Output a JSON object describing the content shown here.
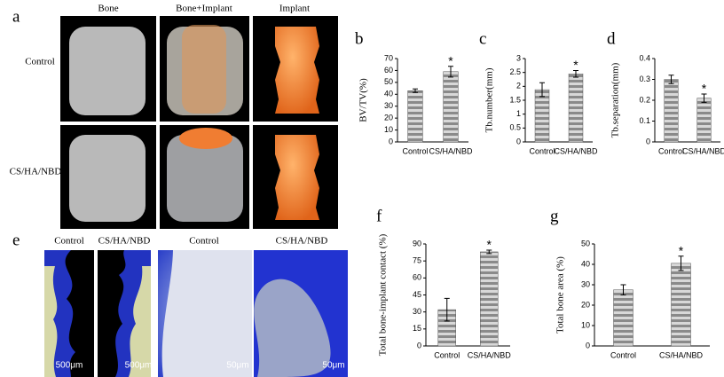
{
  "panel_a": {
    "label": "a",
    "columns": [
      "Bone",
      "Bone+Implant",
      "Implant"
    ],
    "rows": [
      "Control",
      "CS/HA/NBD"
    ]
  },
  "panel_e": {
    "label": "e",
    "labels": [
      "Control",
      "CS/HA/NBD",
      "Control",
      "CS/HA/NBD"
    ],
    "scale_bars": [
      "500μm",
      "500μm",
      "50μm",
      "50μm"
    ]
  },
  "chart_data": [
    {
      "type": "bar",
      "label": "b",
      "ylabel": "BV/TV(%)",
      "categories": [
        "Control",
        "CS/HA/NBD"
      ],
      "values": [
        43,
        59
      ],
      "errors": [
        1.5,
        4.5
      ],
      "annotation": "*",
      "ylim": [
        0,
        70
      ],
      "yticks": [
        0,
        10,
        20,
        30,
        40,
        50,
        60,
        70
      ]
    },
    {
      "type": "bar",
      "label": "c",
      "ylabel": "Tb.number(mm)",
      "categories": [
        "Control",
        "CS/HA/NBD"
      ],
      "values": [
        1.88,
        2.45
      ],
      "errors": [
        0.25,
        0.12
      ],
      "annotation": "*",
      "ylim": [
        0,
        3
      ],
      "yticks": [
        0,
        0.5,
        1,
        1.5,
        2,
        2.5,
        3
      ]
    },
    {
      "type": "bar",
      "label": "d",
      "ylabel": "Tb.separation(mm)",
      "categories": [
        "Control",
        "CS/HA/NBD"
      ],
      "values": [
        0.3,
        0.21
      ],
      "errors": [
        0.02,
        0.02
      ],
      "annotation": "*",
      "ylim": [
        0,
        0.4
      ],
      "yticks": [
        0,
        0.1,
        0.2,
        0.3,
        0.4
      ]
    },
    {
      "type": "bar",
      "label": "f",
      "ylabel": "Total bone-implant contact (%)",
      "categories": [
        "Control",
        "CS/HA/NBD"
      ],
      "values": [
        32,
        83
      ],
      "errors": [
        10,
        1.5
      ],
      "annotation": "*",
      "ylim": [
        0,
        90
      ],
      "yticks": [
        0,
        15,
        30,
        45,
        60,
        75,
        90
      ]
    },
    {
      "type": "bar",
      "label": "g",
      "ylabel": "Total bone area (%)",
      "categories": [
        "Control",
        "CS/HA/NBD"
      ],
      "values": [
        27.5,
        40.5
      ],
      "errors": [
        2.5,
        3.5
      ],
      "annotation": "*",
      "ylim": [
        0,
        50
      ],
      "yticks": [
        0,
        10,
        20,
        30,
        40,
        50
      ]
    }
  ]
}
